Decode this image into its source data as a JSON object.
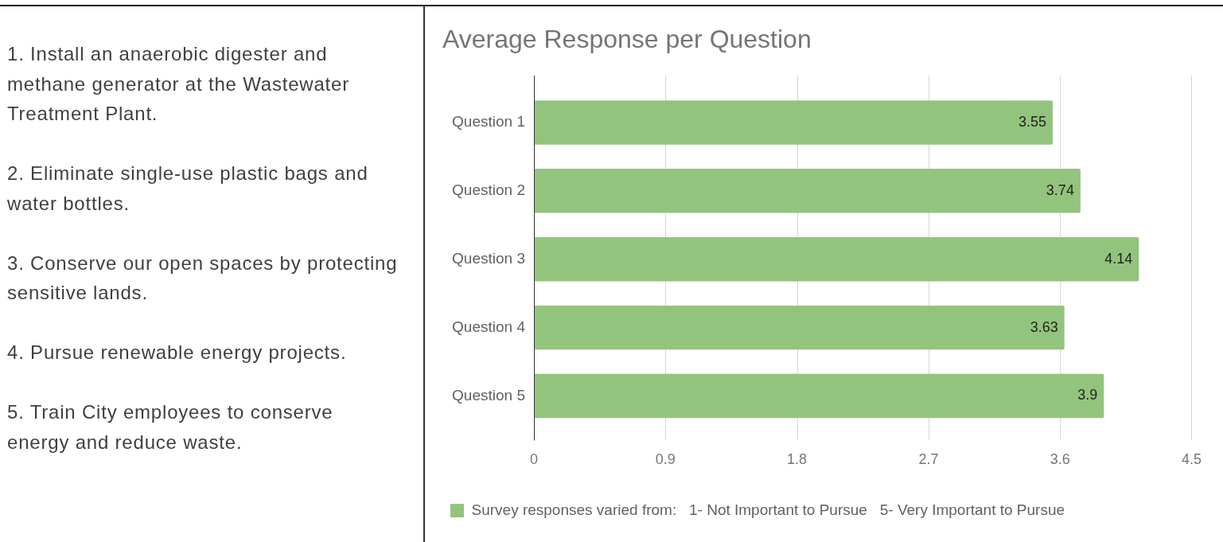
{
  "chart_data": {
    "type": "bar",
    "orientation": "horizontal",
    "title": "Average Response per Question",
    "categories": [
      "Question 1",
      "Question 2",
      "Question 3",
      "Question 4",
      "Question 5"
    ],
    "series": [
      {
        "name": "Survey responses varied from:   1- Not Important to Pursue   5- Very Important to Pursue",
        "color": "#93c47d",
        "values": [
          3.55,
          3.74,
          4.14,
          3.63,
          3.9
        ]
      }
    ],
    "xlim": [
      0,
      4.5
    ],
    "xticks": [
      0,
      0.9,
      1.8,
      2.7,
      3.6,
      4.5
    ],
    "grid": "x",
    "legend": "bottom left",
    "data_labels": true,
    "annotations": [
      "1. Install an anaerobic digester and\nmethane generator at the Wastewater\nTreatment Plant.",
      "2. Eliminate single-use plastic bags and\nwater bottles.",
      "3. Conserve our open spaces by protecting\nsensitive lands.",
      "4. Pursue renewable energy projects.",
      "5. Train City employees to conserve\nenergy and reduce waste."
    ]
  }
}
